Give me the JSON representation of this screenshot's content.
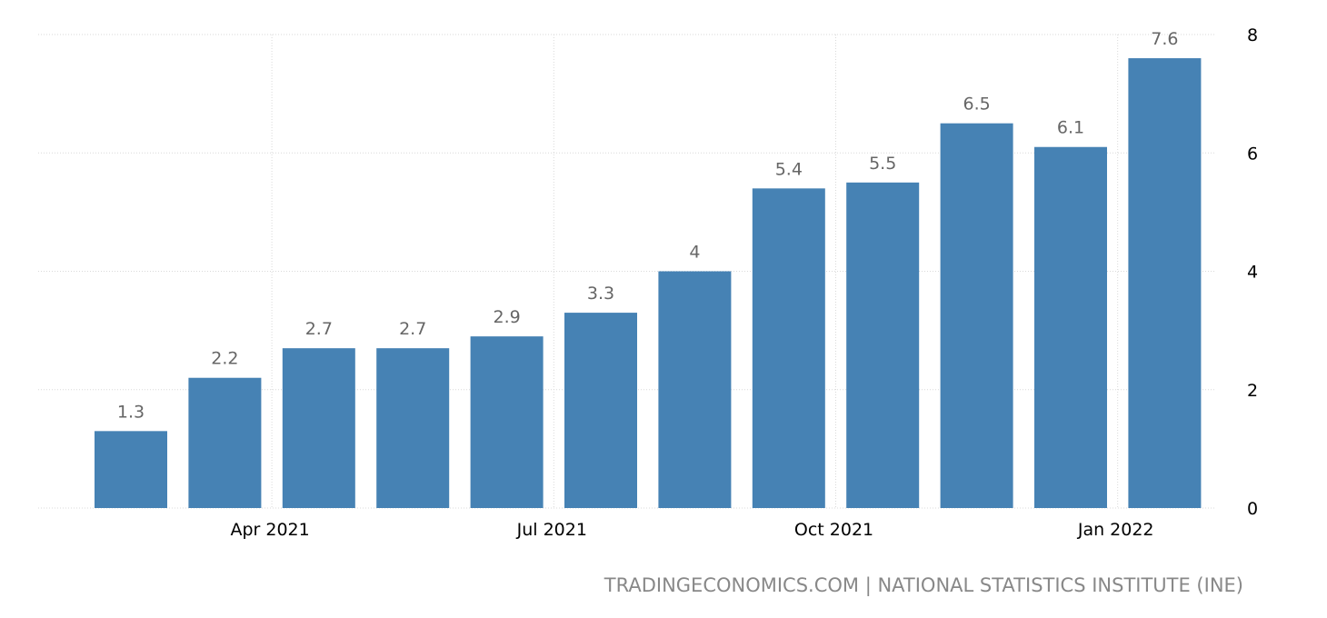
{
  "chart_data": {
    "type": "bar",
    "categories": [
      "Mar 2021",
      "Apr 2021",
      "May 2021",
      "Jun 2021",
      "Jul 2021",
      "Aug 2021",
      "Sep 2021",
      "Oct 2021",
      "Nov 2021",
      "Dec 2021",
      "Jan 2022",
      "Feb 2022"
    ],
    "values": [
      1.3,
      2.2,
      2.7,
      2.7,
      2.9,
      3.3,
      4,
      5.4,
      5.5,
      6.5,
      6.1,
      7.6
    ],
    "value_labels": [
      "1.3",
      "2.2",
      "2.7",
      "2.7",
      "2.9",
      "3.3",
      "4",
      "5.4",
      "5.5",
      "6.5",
      "6.1",
      "7.6"
    ],
    "x_tick_labels": [
      {
        "category_index": 1,
        "label": "Apr 2021"
      },
      {
        "category_index": 4,
        "label": "Jul 2021"
      },
      {
        "category_index": 7,
        "label": "Oct 2021"
      },
      {
        "category_index": 10,
        "label": "Jan 2022"
      }
    ],
    "y_ticks": [
      "0",
      "2",
      "4",
      "6",
      "8"
    ],
    "ylim": [
      0,
      8
    ],
    "y_axis_side": "right",
    "grid": true,
    "bar_color": "#4682b4",
    "title": "",
    "xlabel": "",
    "ylabel": ""
  },
  "source": {
    "text": "TRADINGECONOMICS.COM | NATIONAL STATISTICS INSTITUTE (INE)"
  }
}
